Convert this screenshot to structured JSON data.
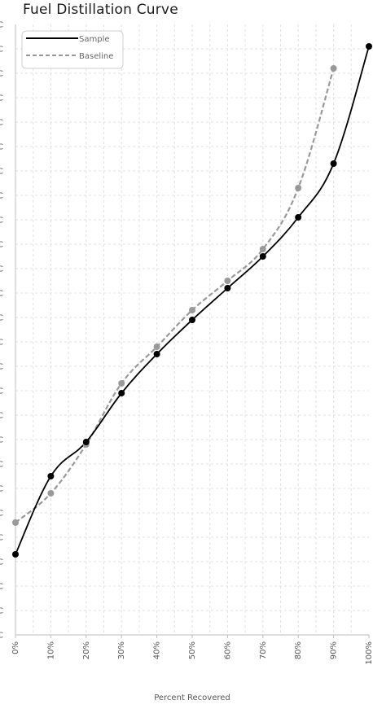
{
  "chart_data": {
    "type": "line",
    "title": "Fuel Distillation Curve",
    "xlabel": "Percent Recovered",
    "ylabel": "",
    "x": [
      0,
      10,
      20,
      30,
      40,
      50,
      60,
      70,
      80,
      90,
      100
    ],
    "x_tick_labels": [
      "0%",
      "10%",
      "20%",
      "30%",
      "40%",
      "50%",
      "60%",
      "70%",
      "80%",
      "90%",
      "100%"
    ],
    "y_tick_labels": [
      "°C",
      "°C",
      "°C",
      "°C",
      "°C",
      "°C",
      "°C",
      "°C",
      "°C",
      "°C",
      "°C",
      "°C",
      "°C",
      "°C",
      "°C",
      "°C",
      "°C",
      "°C",
      "°C",
      "°C",
      "°C",
      "°C",
      "°C",
      "°C",
      "°C",
      "°C"
    ],
    "ylim": [
      0,
      25
    ],
    "grid": true,
    "legend_position": "top-left",
    "series": [
      {
        "name": "Sample",
        "color": "#000000",
        "dash": "solid",
        "x": [
          0,
          10,
          20,
          30,
          40,
          50,
          60,
          70,
          80,
          90,
          100
        ],
        "y": [
          3.3,
          6.5,
          7.9,
          9.9,
          11.5,
          12.9,
          14.2,
          15.5,
          17.1,
          19.3,
          24.1
        ]
      },
      {
        "name": "Baseline",
        "color": "#999999",
        "dash": "dashed",
        "x": [
          0,
          10,
          20,
          30,
          40,
          50,
          60,
          70,
          80,
          90
        ],
        "y": [
          4.6,
          5.8,
          7.8,
          10.3,
          11.8,
          13.3,
          14.5,
          15.8,
          18.3,
          23.2
        ]
      }
    ]
  }
}
